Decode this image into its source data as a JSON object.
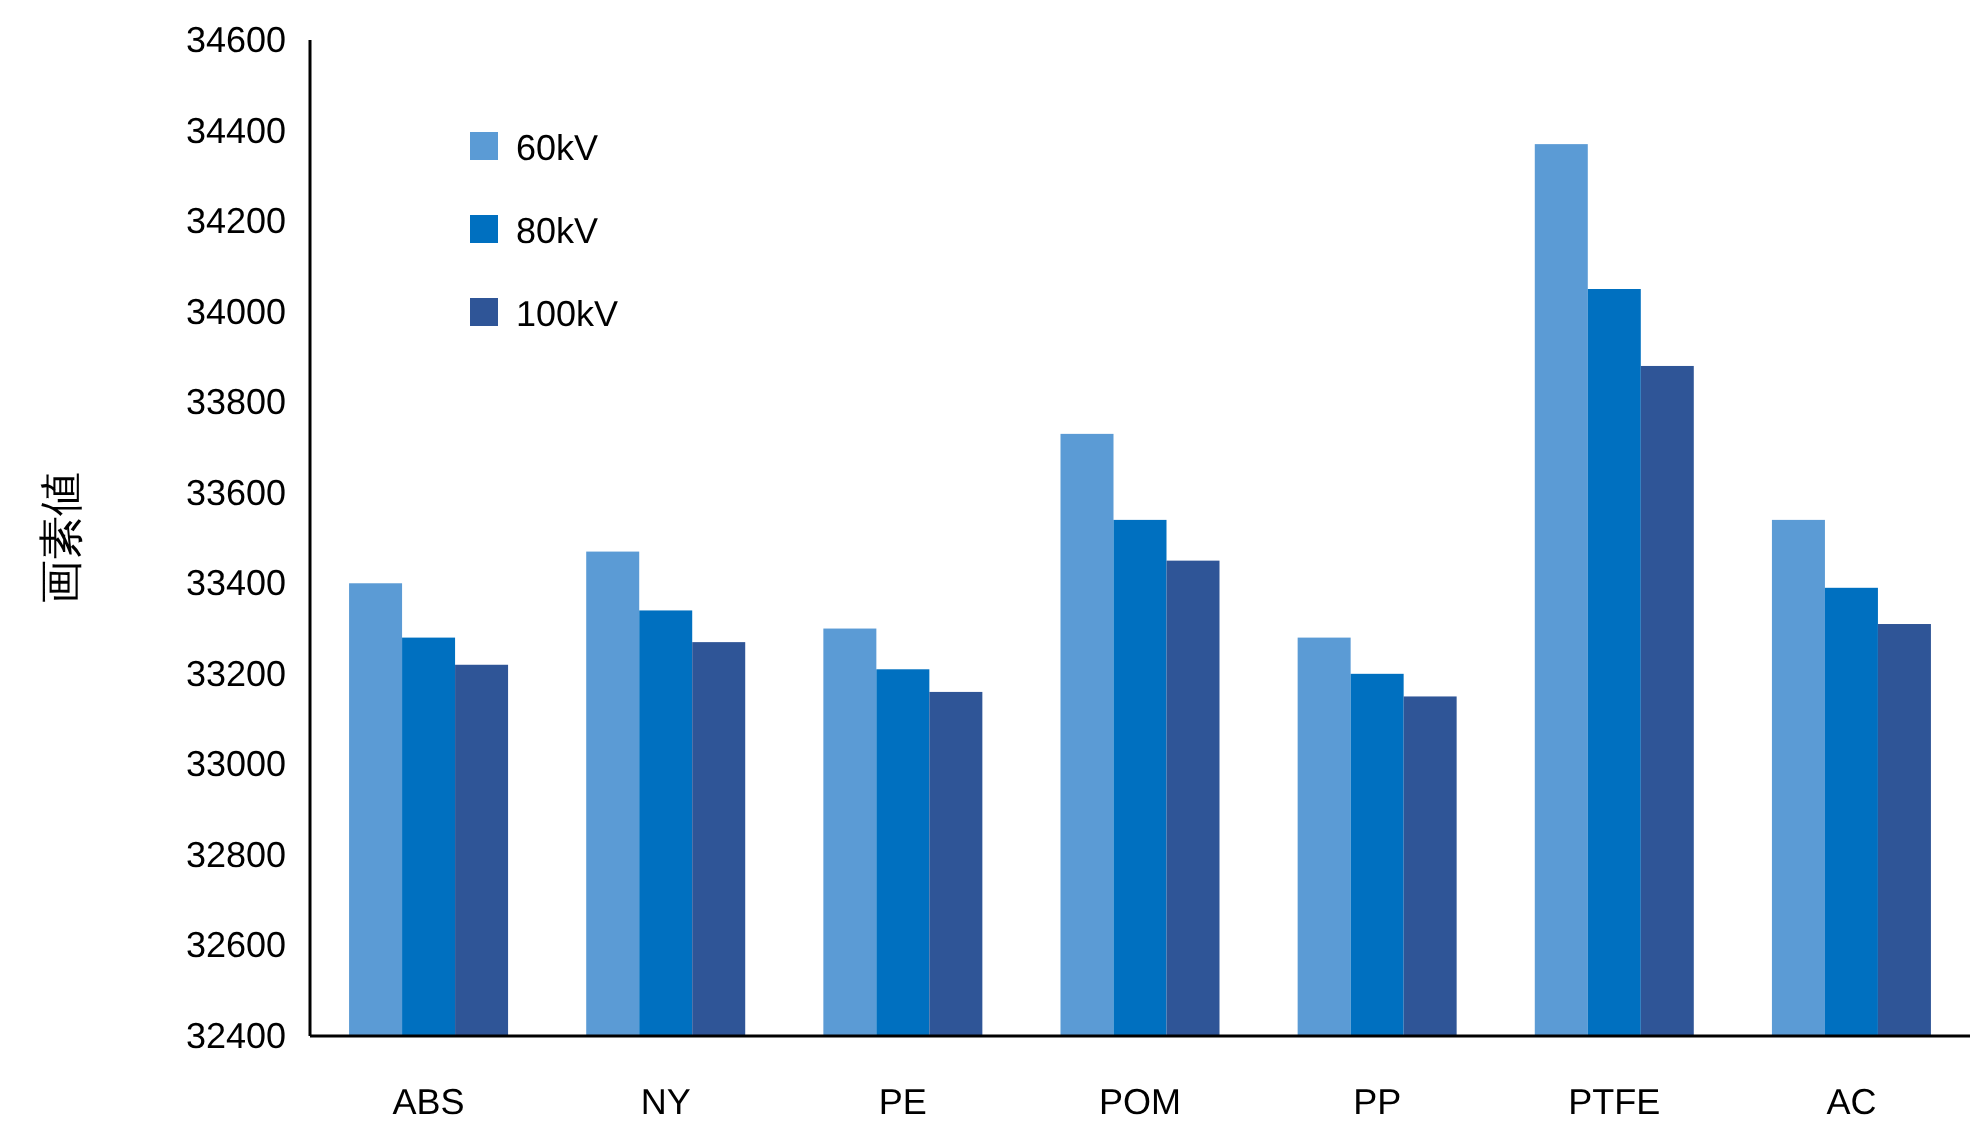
{
  "chart_data": {
    "type": "bar",
    "ylabel": "画素値",
    "categories": [
      "ABS",
      "NY",
      "PE",
      "POM",
      "PP",
      "PTFE",
      "AC"
    ],
    "series": [
      {
        "name": "60kV",
        "color": "#5b9bd5",
        "values": [
          33400,
          33470,
          33300,
          33730,
          33280,
          34370,
          33540
        ]
      },
      {
        "name": "80kV",
        "color": "#0070c0",
        "values": [
          33280,
          33340,
          33210,
          33540,
          33200,
          34050,
          33390
        ]
      },
      {
        "name": "100kV",
        "color": "#2f5597",
        "values": [
          33220,
          33270,
          33160,
          33450,
          33150,
          33880,
          33310
        ]
      }
    ],
    "ylim": [
      32400,
      34600
    ],
    "yticks": [
      32400,
      32600,
      32800,
      33000,
      33200,
      33400,
      33600,
      33800,
      34000,
      34200,
      34400,
      34600
    ],
    "legend": "top left"
  }
}
